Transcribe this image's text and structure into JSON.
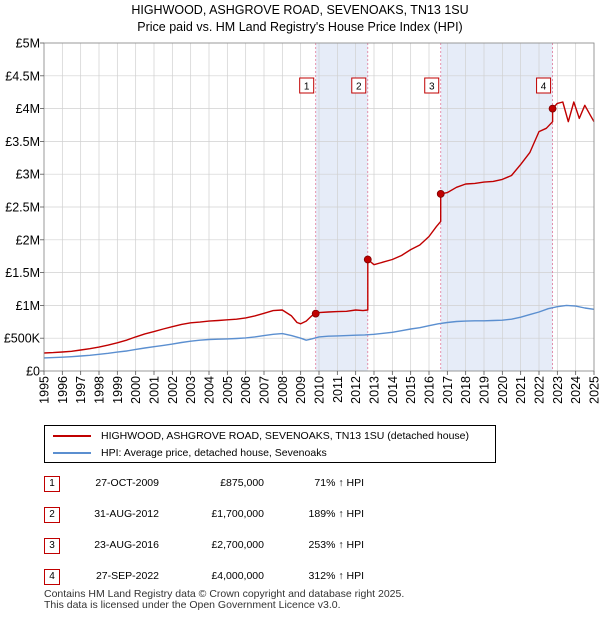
{
  "chart_data": {
    "type": "line",
    "title": "HIGHWOOD, ASHGROVE ROAD, SEVENOAKS, TN13 1SU",
    "subtitle": "Price paid vs. HM Land Registry's House Price Index (HPI)",
    "xlim": [
      1995,
      2025
    ],
    "ylim": [
      0,
      5000000
    ],
    "y_ticks": [
      {
        "value": 0,
        "label": "£0"
      },
      {
        "value": 500000,
        "label": "£500K"
      },
      {
        "value": 1000000,
        "label": "£1M"
      },
      {
        "value": 1500000,
        "label": "£1.5M"
      },
      {
        "value": 2000000,
        "label": "£2M"
      },
      {
        "value": 2500000,
        "label": "£2.5M"
      },
      {
        "value": 3000000,
        "label": "£3M"
      },
      {
        "value": 3500000,
        "label": "£3.5M"
      },
      {
        "value": 4000000,
        "label": "£4M"
      },
      {
        "value": 4500000,
        "label": "£4.5M"
      },
      {
        "value": 5000000,
        "label": "£5M"
      }
    ],
    "x_ticks": [
      "1995",
      "1996",
      "1997",
      "1998",
      "1999",
      "2000",
      "2001",
      "2002",
      "2003",
      "2004",
      "2005",
      "2006",
      "2007",
      "2008",
      "2009",
      "2010",
      "2011",
      "2012",
      "2013",
      "2014",
      "2015",
      "2016",
      "2017",
      "2018",
      "2019",
      "2020",
      "2021",
      "2022",
      "2023",
      "2024",
      "2025"
    ],
    "grid": true,
    "series": [
      {
        "name": "HIGHWOOD, ASHGROVE ROAD, SEVENOAKS, TN13 1SU (detached house)",
        "color": "#c00000",
        "x": [
          1995.0,
          1995.5,
          1996.0,
          1996.5,
          1997.0,
          1997.5,
          1998.0,
          1998.5,
          1999.0,
          1999.5,
          2000.0,
          2000.5,
          2001.0,
          2001.5,
          2002.0,
          2002.5,
          2003.0,
          2003.5,
          2004.0,
          2004.5,
          2005.0,
          2005.5,
          2006.0,
          2006.5,
          2007.0,
          2007.5,
          2008.0,
          2008.5,
          2008.8,
          2009.0,
          2009.3,
          2009.6,
          2009.82,
          2010.0,
          2010.5,
          2011.0,
          2011.5,
          2012.0,
          2012.4,
          2012.66,
          2012.66,
          2013.0,
          2013.5,
          2014.0,
          2014.5,
          2015.0,
          2015.5,
          2016.0,
          2016.4,
          2016.64,
          2016.64,
          2017.0,
          2017.5,
          2018.0,
          2018.5,
          2019.0,
          2019.5,
          2020.0,
          2020.5,
          2021.0,
          2021.5,
          2022.0,
          2022.4,
          2022.74,
          2022.74,
          2023.0,
          2023.3,
          2023.6,
          2023.9,
          2024.2,
          2024.5,
          2024.8,
          2025.0
        ],
        "values": [
          275000,
          280000,
          290000,
          300000,
          320000,
          340000,
          365000,
          395000,
          430000,
          470000,
          520000,
          565000,
          600000,
          640000,
          675000,
          710000,
          735000,
          745000,
          760000,
          770000,
          780000,
          790000,
          810000,
          840000,
          880000,
          920000,
          930000,
          840000,
          740000,
          720000,
          760000,
          840000,
          875000,
          890000,
          900000,
          905000,
          910000,
          930000,
          920000,
          930000,
          1700000,
          1620000,
          1660000,
          1700000,
          1760000,
          1850000,
          1920000,
          2050000,
          2200000,
          2280000,
          2700000,
          2720000,
          2800000,
          2850000,
          2860000,
          2880000,
          2890000,
          2920000,
          2980000,
          3150000,
          3330000,
          3650000,
          3700000,
          3800000,
          4000000,
          4080000,
          4100000,
          3800000,
          4100000,
          3850000,
          4050000,
          3900000,
          3800000
        ]
      },
      {
        "name": "HPI: Average price, detached house, Sevenoaks",
        "color": "#5b8fd0",
        "x": [
          1995.0,
          1995.5,
          1996.0,
          1996.5,
          1997.0,
          1997.5,
          1998.0,
          1998.5,
          1999.0,
          1999.5,
          2000.0,
          2000.5,
          2001.0,
          2001.5,
          2002.0,
          2002.5,
          2003.0,
          2003.5,
          2004.0,
          2004.5,
          2005.0,
          2005.5,
          2006.0,
          2006.5,
          2007.0,
          2007.5,
          2008.0,
          2008.5,
          2009.0,
          2009.3,
          2009.6,
          2010.0,
          2010.5,
          2011.0,
          2011.5,
          2012.0,
          2012.5,
          2013.0,
          2013.5,
          2014.0,
          2014.5,
          2015.0,
          2015.5,
          2016.0,
          2016.5,
          2017.0,
          2017.5,
          2018.0,
          2018.5,
          2019.0,
          2019.5,
          2020.0,
          2020.5,
          2021.0,
          2021.5,
          2022.0,
          2022.5,
          2023.0,
          2023.5,
          2024.0,
          2024.5,
          2025.0
        ],
        "values": [
          200000,
          205000,
          210000,
          218000,
          228000,
          240000,
          255000,
          270000,
          288000,
          305000,
          330000,
          350000,
          370000,
          390000,
          410000,
          435000,
          455000,
          470000,
          480000,
          485000,
          490000,
          495000,
          505000,
          520000,
          540000,
          560000,
          570000,
          540000,
          500000,
          470000,
          490000,
          520000,
          530000,
          535000,
          540000,
          545000,
          550000,
          560000,
          575000,
          590000,
          615000,
          640000,
          660000,
          690000,
          720000,
          740000,
          755000,
          760000,
          765000,
          765000,
          770000,
          775000,
          790000,
          820000,
          860000,
          900000,
          950000,
          980000,
          1000000,
          990000,
          960000,
          940000
        ]
      }
    ],
    "markers": [
      {
        "label": "1",
        "x": 2009.82,
        "value": 875000
      },
      {
        "label": "2",
        "x": 2012.66,
        "value": 1700000
      },
      {
        "label": "3",
        "x": 2016.64,
        "value": 2700000
      },
      {
        "label": "4",
        "x": 2022.74,
        "value": 4000000
      }
    ],
    "shaded_spans": [
      [
        2009.82,
        2012.66
      ],
      [
        2016.64,
        2022.74
      ]
    ]
  },
  "legend": {
    "property_label": "HIGHWOOD, ASHGROVE ROAD, SEVENOAKS, TN13 1SU (detached house)",
    "hpi_label": "HPI: Average price, detached house, Sevenoaks"
  },
  "transactions": [
    {
      "num": "1",
      "date": "27-OCT-2009",
      "price": "£875,000",
      "hpi": "71% ↑ HPI"
    },
    {
      "num": "2",
      "date": "31-AUG-2012",
      "price": "£1,700,000",
      "hpi": "189% ↑ HPI"
    },
    {
      "num": "3",
      "date": "23-AUG-2016",
      "price": "£2,700,000",
      "hpi": "253% ↑ HPI"
    },
    {
      "num": "4",
      "date": "27-SEP-2022",
      "price": "£4,000,000",
      "hpi": "312% ↑ HPI"
    }
  ],
  "footer": {
    "line1": "Contains HM Land Registry data © Crown copyright and database right 2025.",
    "line2": "This data is licensed under the Open Government Licence v3.0."
  }
}
